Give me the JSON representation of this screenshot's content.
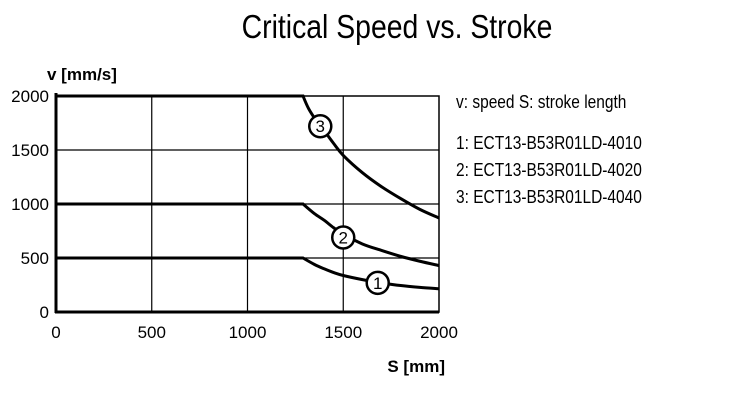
{
  "chart_data": {
    "type": "line",
    "title": "Critical Speed vs. Stroke",
    "xlabel": "S [mm]",
    "ylabel": "v [mm/s]",
    "xlim": [
      0,
      2000
    ],
    "ylim": [
      0,
      2000
    ],
    "xticks": [
      "0",
      "500",
      "1000",
      "1500",
      "2000"
    ],
    "yticks": [
      "0",
      "500",
      "1000",
      "1500",
      "2000"
    ],
    "grid": true,
    "legend_position": "right",
    "legend_header": "v: speed   S: stroke length",
    "series": [
      {
        "name": "1",
        "label": "1:  ECT13-B53R01LD-4010",
        "x": [
          0,
          1290,
          1350,
          1400,
          1450,
          1500,
          1600,
          1700,
          1800,
          1900,
          2000
        ],
        "y": [
          500,
          500,
          440,
          400,
          365,
          338,
          300,
          270,
          245,
          228,
          215
        ],
        "marker_at": [
          1680,
          270
        ]
      },
      {
        "name": "2",
        "label": "2:  ECT13-B53R01LD-4020",
        "x": [
          0,
          1290,
          1350,
          1400,
          1450,
          1500,
          1600,
          1700,
          1800,
          1900,
          2000
        ],
        "y": [
          1000,
          1000,
          910,
          850,
          780,
          720,
          630,
          570,
          515,
          470,
          430
        ],
        "marker_at": [
          1500,
          690
        ]
      },
      {
        "name": "3",
        "label": "3:  ECT13-B53R01LD-4040",
        "x": [
          0,
          1290,
          1320,
          1360,
          1400,
          1450,
          1500,
          1600,
          1700,
          1800,
          1900,
          2000
        ],
        "y": [
          2000,
          2000,
          1880,
          1770,
          1680,
          1560,
          1450,
          1290,
          1160,
          1050,
          950,
          870
        ],
        "marker_at": [
          1380,
          1720
        ]
      }
    ]
  }
}
